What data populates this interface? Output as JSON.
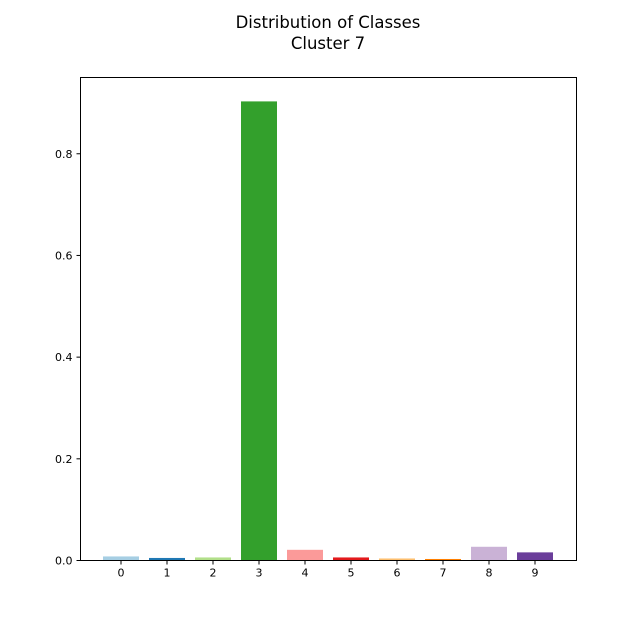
{
  "chart_data": {
    "type": "bar",
    "title": "Distribution of Classes",
    "subtitle": "Cluster 7",
    "xlabel": "",
    "ylabel": "",
    "categories": [
      "0",
      "1",
      "2",
      "3",
      "4",
      "5",
      "6",
      "7",
      "8",
      "9"
    ],
    "values": [
      0.008,
      0.005,
      0.006,
      0.903,
      0.021,
      0.006,
      0.004,
      0.003,
      0.027,
      0.016
    ],
    "colors": [
      "#a6cee3",
      "#1f78b4",
      "#b2df8a",
      "#33a02c",
      "#fb9a99",
      "#e31a1c",
      "#fdbf6f",
      "#ff7f00",
      "#cab2d6",
      "#6a3d9a"
    ],
    "ylim": [
      0,
      0.95
    ],
    "yticks": [
      "0.0",
      "0.2",
      "0.4",
      "0.6",
      "0.8"
    ],
    "grid": false,
    "legend": "none"
  }
}
